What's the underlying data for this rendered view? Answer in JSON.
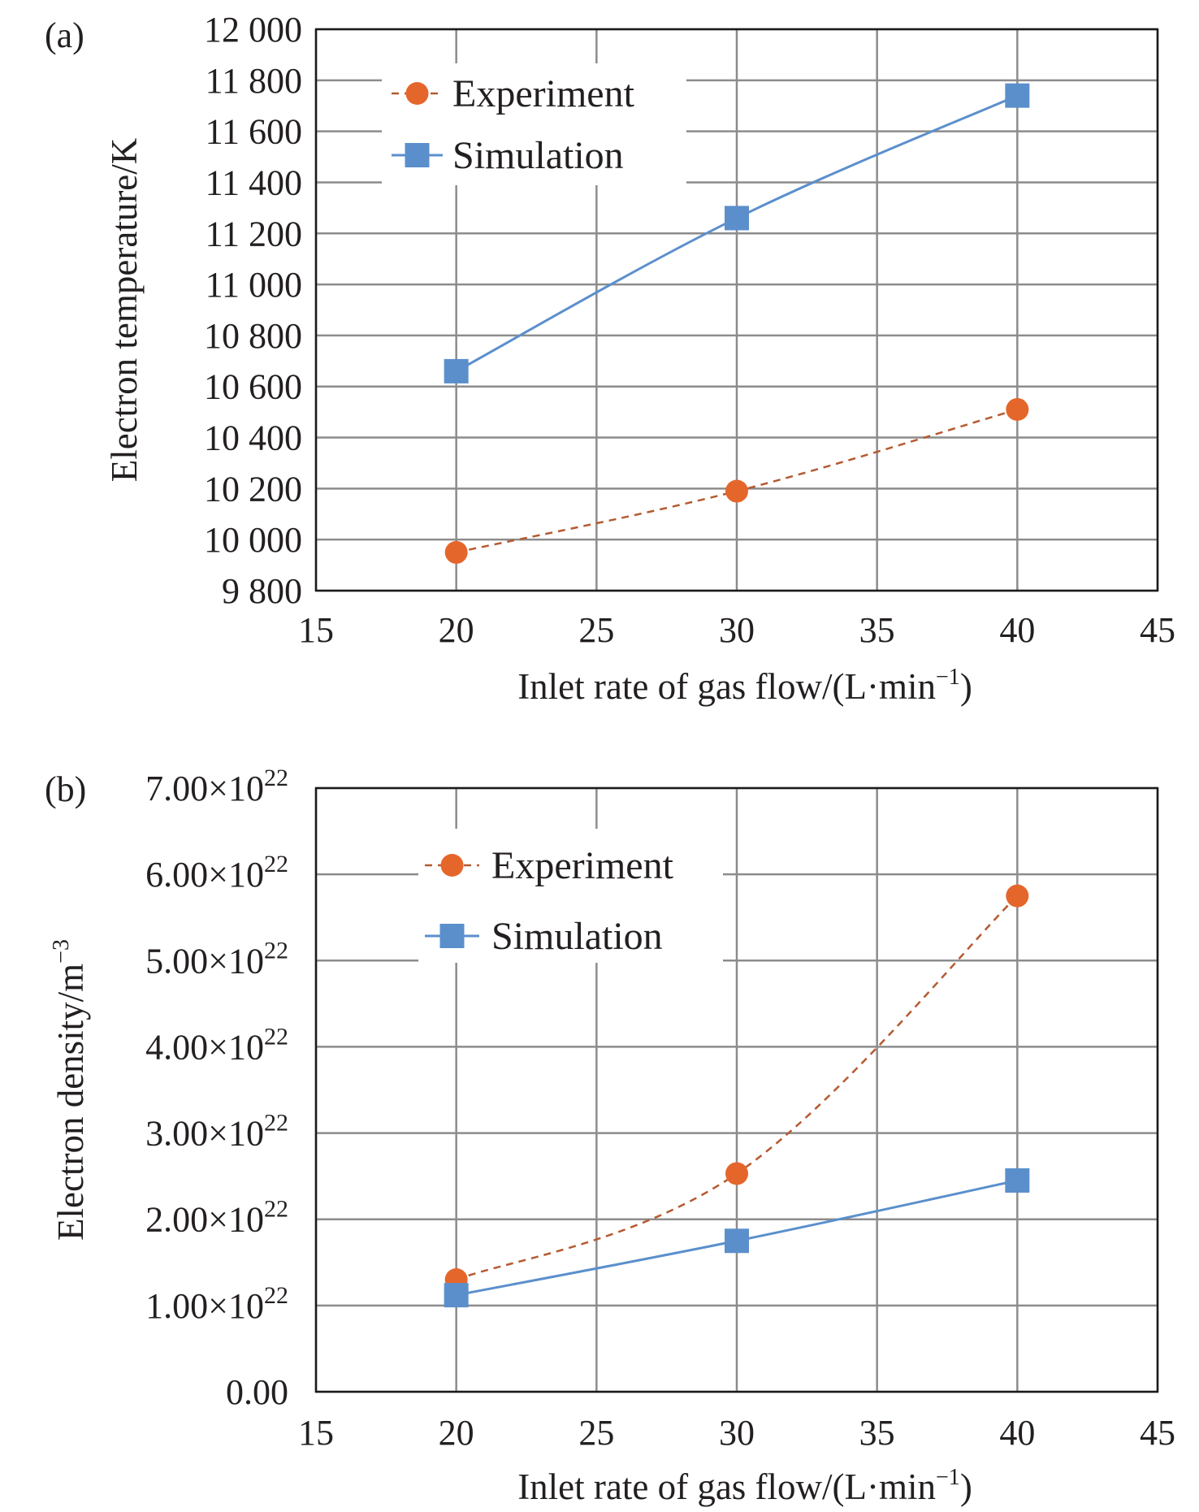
{
  "colors": {
    "experiment": "#E5662B",
    "experiment_line": "#B55A30",
    "simulation": "#5B8FCC",
    "grid": "#8c8c8c",
    "text": "#231f20"
  },
  "chart_data": [
    {
      "id": "a",
      "panel_label": "(a)",
      "type": "line",
      "xlabel_main": "Inlet rate of gas flow/(L·min",
      "xlabel_sup": "−1",
      "xlabel_close": ")",
      "ylabel_main": "Electron temperature/K",
      "ylabel_sup": "",
      "xlim": [
        15,
        45
      ],
      "ylim": [
        9800,
        12000
      ],
      "xticks": [
        15,
        20,
        25,
        30,
        35,
        40,
        45
      ],
      "yticks": [
        {
          "value": 9800,
          "mant": "9 800",
          "exp": ""
        },
        {
          "value": 10000,
          "mant": "10 000",
          "exp": ""
        },
        {
          "value": 10200,
          "mant": "10 200",
          "exp": ""
        },
        {
          "value": 10400,
          "mant": "10 400",
          "exp": ""
        },
        {
          "value": 10600,
          "mant": "10 600",
          "exp": ""
        },
        {
          "value": 10800,
          "mant": "10 800",
          "exp": ""
        },
        {
          "value": 11000,
          "mant": "11 000",
          "exp": ""
        },
        {
          "value": 11200,
          "mant": "11 200",
          "exp": ""
        },
        {
          "value": 11400,
          "mant": "11 400",
          "exp": ""
        },
        {
          "value": 11600,
          "mant": "11 600",
          "exp": ""
        },
        {
          "value": 11800,
          "mant": "11 800",
          "exp": ""
        },
        {
          "value": 12000,
          "mant": "12 000",
          "exp": ""
        }
      ],
      "grid": true,
      "legend_position": "top-left",
      "series": [
        {
          "name": "Experiment",
          "marker": "circle",
          "line": "dashed",
          "x": [
            20,
            30,
            40
          ],
          "y": [
            9950,
            10190,
            10510
          ]
        },
        {
          "name": "Simulation",
          "marker": "square",
          "line": "solid",
          "x": [
            20,
            30,
            40
          ],
          "y": [
            10660,
            11260,
            11740
          ]
        }
      ]
    },
    {
      "id": "b",
      "panel_label": "(b)",
      "type": "line",
      "xlabel_main": "Inlet rate of gas flow/(L·min",
      "xlabel_sup": "−1",
      "xlabel_close": ")",
      "ylabel_main": "Electron density/m",
      "ylabel_sup": "−3",
      "xlim": [
        15,
        45
      ],
      "ylim": [
        0,
        7e+22
      ],
      "xticks": [
        15,
        20,
        25,
        30,
        35,
        40,
        45
      ],
      "yticks": [
        {
          "value": 0,
          "mant": "0.00",
          "exp": ""
        },
        {
          "value": 1e+22,
          "mant": "1.00×10",
          "exp": "22"
        },
        {
          "value": 2e+22,
          "mant": "2.00×10",
          "exp": "22"
        },
        {
          "value": 3e+22,
          "mant": "3.00×10",
          "exp": "22"
        },
        {
          "value": 4e+22,
          "mant": "4.00×10",
          "exp": "22"
        },
        {
          "value": 5e+22,
          "mant": "5.00×10",
          "exp": "22"
        },
        {
          "value": 6e+22,
          "mant": "6.00×10",
          "exp": "22"
        },
        {
          "value": 7e+22,
          "mant": "7.00×10",
          "exp": "22"
        }
      ],
      "grid": true,
      "legend_position": "top-left",
      "series": [
        {
          "name": "Experiment",
          "marker": "circle",
          "line": "dashed",
          "x": [
            20,
            30,
            40
          ],
          "y": [
            1.3e+22,
            2.53e+22,
            5.75e+22
          ]
        },
        {
          "name": "Simulation",
          "marker": "square",
          "line": "solid",
          "x": [
            20,
            30,
            40
          ],
          "y": [
            1.12e+22,
            1.75e+22,
            2.45e+22
          ]
        }
      ]
    }
  ]
}
